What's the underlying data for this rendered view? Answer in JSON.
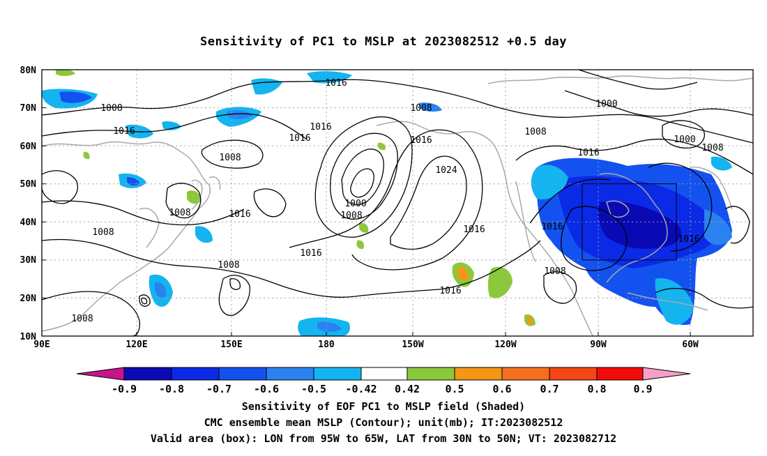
{
  "title": "Sensitivity of PC1 to MSLP at 2023082512 +0.5 day",
  "lat_labels": [
    "80N",
    "70N",
    "60N",
    "50N",
    "40N",
    "30N",
    "20N",
    "10N"
  ],
  "lon_labels": [
    "90E",
    "120E",
    "150E",
    "180",
    "150W",
    "120W",
    "90W",
    "60W"
  ],
  "contour_labels": [
    "1008",
    "1008",
    "1016",
    "1016",
    "1000",
    "1000",
    "1008",
    "1016",
    "1008",
    "1016",
    "1008",
    "1016",
    "1008",
    "1016",
    "1008",
    "1016",
    "1016",
    "1024",
    "1008",
    "1000",
    "1008",
    "1016",
    "1016",
    "1008",
    "1016",
    "1008"
  ],
  "colorbar": {
    "ticks": [
      "-0.9",
      "-0.8",
      "-0.7",
      "-0.6",
      "-0.5",
      "-0.42",
      "0.42",
      "0.5",
      "0.6",
      "0.7",
      "0.8",
      "0.9"
    ],
    "colors": [
      "#0a0ab4",
      "#0a2ae6",
      "#1452f0",
      "#2a82f0",
      "#14b4f0",
      "#ffffff",
      "#8cc83c",
      "#f59614",
      "#f5701e",
      "#f54614",
      "#f50a0a"
    ],
    "low_end_color": "#c8148c",
    "high_end_color": "#f5a0c8"
  },
  "captions": [
    "Sensitivity of EOF PC1 to MSLP field (Shaded)",
    "CMC ensemble mean MSLP (Contour); unit(mb); IT:2023082512",
    "Valid area (box): LON from 95W to 65W, LAT from 30N to 50N; VT: 2023082712"
  ]
}
